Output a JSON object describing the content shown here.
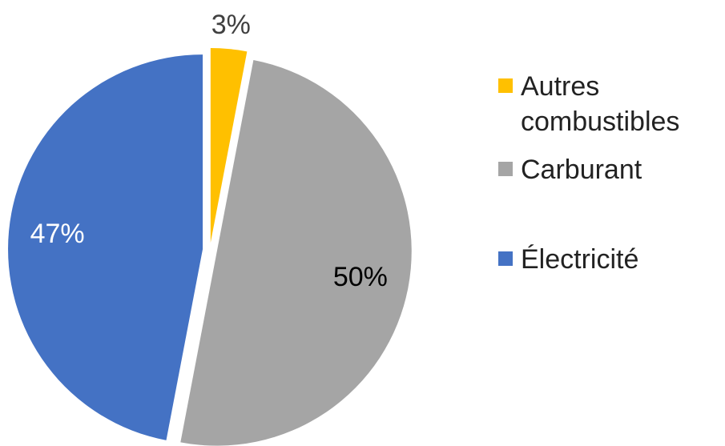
{
  "chart_data": {
    "type": "pie",
    "categories": [
      "Autres combustibles",
      "Carburant",
      "Électricité"
    ],
    "values": [
      3,
      50,
      47
    ],
    "value_labels": [
      "3%",
      "50%",
      "47%"
    ],
    "colors": [
      "#ffc000",
      "#a5a5a5",
      "#4472c4"
    ],
    "legend": "right"
  }
}
